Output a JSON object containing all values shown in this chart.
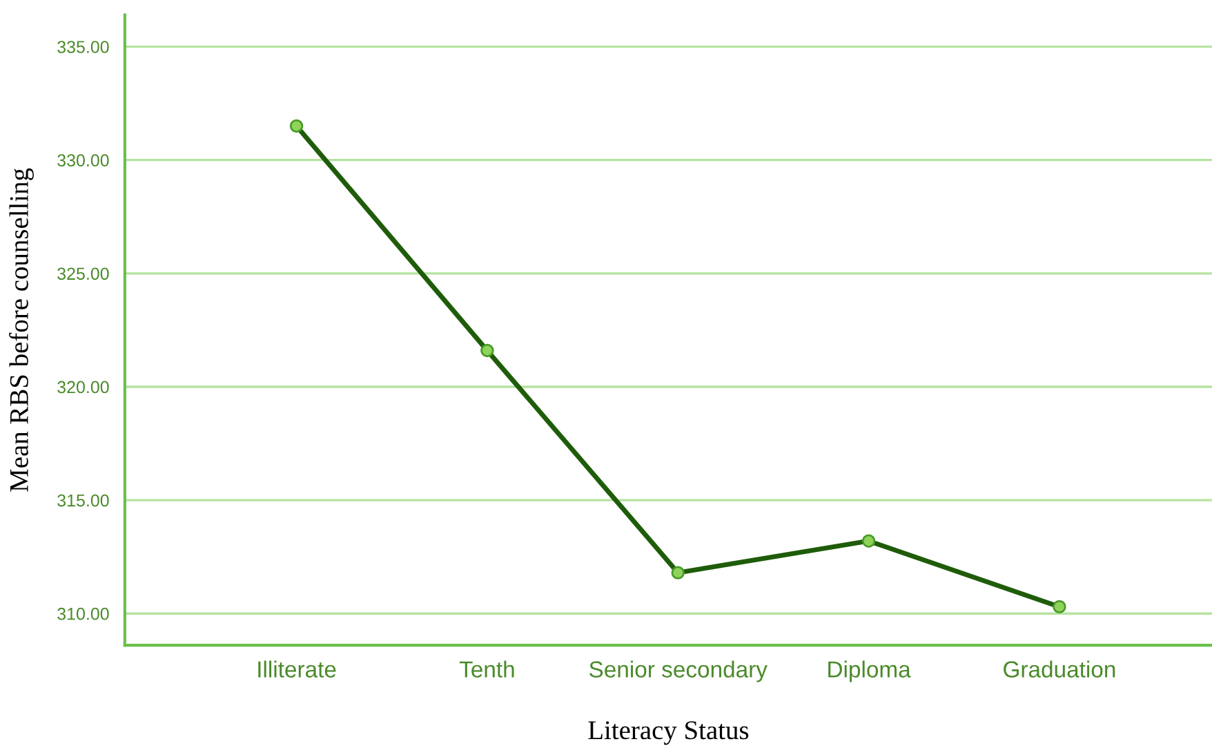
{
  "chart_data": {
    "type": "line",
    "xlabel": "Literacy Status",
    "ylabel": "Mean RBS before counselling",
    "categories": [
      "Illiterate",
      "Tenth",
      "Senior secondary",
      "Diploma",
      "Graduation"
    ],
    "series": [
      {
        "color": "#1f5c0a",
        "values": [
          331.5,
          321.6,
          311.8,
          313.2,
          310.3
        ]
      }
    ],
    "marker": "circle",
    "line_style": "solid",
    "ylim": [
      308.6,
      336.4
    ],
    "yticks": [
      {
        "value": 310,
        "label": "310.00"
      },
      {
        "value": 315,
        "label": "315.00"
      },
      {
        "value": 320,
        "label": "320.00"
      },
      {
        "value": 325,
        "label": "325.00"
      },
      {
        "value": 330,
        "label": "330.00"
      },
      {
        "value": 335,
        "label": "335.00"
      }
    ],
    "grid": "y"
  }
}
